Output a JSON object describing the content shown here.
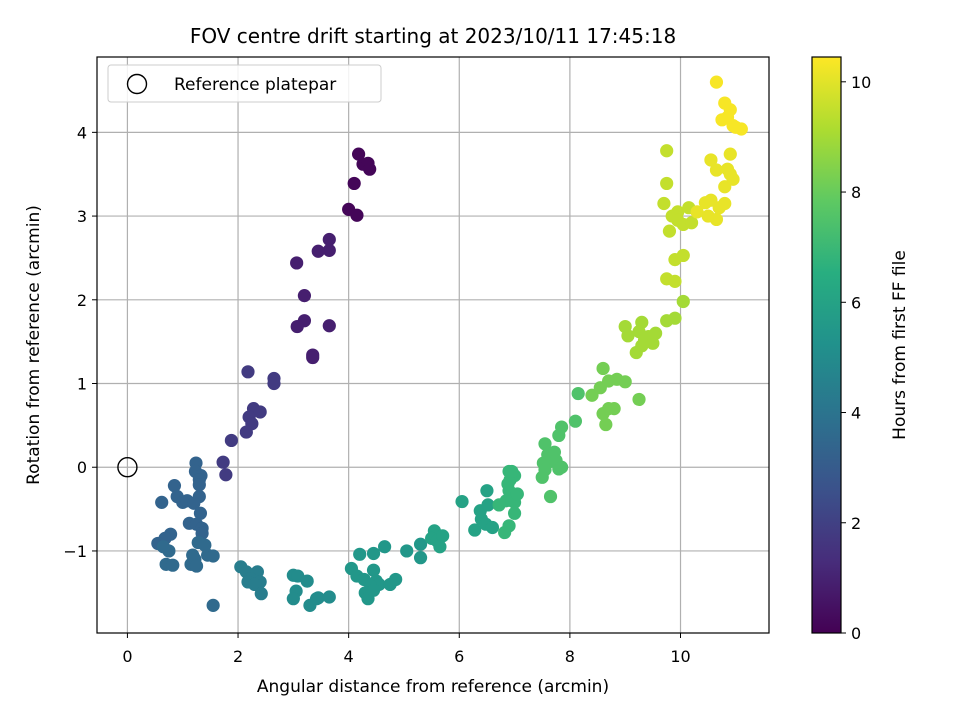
{
  "chart_data": {
    "type": "scatter",
    "title": "FOV centre drift starting at 2023/10/11 17:45:18",
    "xlabel": "Angular distance from reference (arcmin)",
    "ylabel": "Rotation from reference (arcmin)",
    "xlim": [
      -0.55,
      11.6
    ],
    "ylim": [
      -1.98,
      4.9
    ],
    "xticks": [
      0,
      2,
      4,
      6,
      8,
      10
    ],
    "yticks": [
      -1,
      0,
      1,
      2,
      3,
      4
    ],
    "xtick_labels": [
      "0",
      "2",
      "4",
      "6",
      "8",
      "10"
    ],
    "ytick_labels": [
      "−1",
      "0",
      "1",
      "2",
      "3",
      "4"
    ],
    "grid": true,
    "legend": {
      "placement": "top-left",
      "entries": [
        "Reference platepar"
      ]
    },
    "colormap": "viridis",
    "reference": {
      "name": "Reference platepar",
      "x": 0,
      "y": 0
    },
    "colorbar": {
      "label": "Hours from first FF file",
      "range": [
        0,
        10.45
      ],
      "ticks": [
        0,
        2,
        4,
        6,
        8,
        10
      ],
      "tick_labels": [
        "0",
        "2",
        "4",
        "6",
        "8",
        "10"
      ]
    },
    "series": [
      {
        "c": 0.15,
        "points": [
          [
            4.18,
            3.74
          ],
          [
            4.26,
            3.62
          ],
          [
            4.35,
            3.63
          ],
          [
            4.38,
            3.56
          ],
          [
            4.1,
            3.39
          ],
          [
            4.0,
            3.08
          ],
          [
            4.15,
            3.01
          ]
        ]
      },
      {
        "c": 0.9,
        "points": [
          [
            3.65,
            2.72
          ],
          [
            3.65,
            2.59
          ],
          [
            3.45,
            2.58
          ],
          [
            3.06,
            2.44
          ],
          [
            3.2,
            2.05
          ],
          [
            3.2,
            1.75
          ],
          [
            3.07,
            1.68
          ],
          [
            3.65,
            1.69
          ],
          [
            3.35,
            1.34
          ],
          [
            3.35,
            1.31
          ]
        ]
      },
      {
        "c": 1.8,
        "points": [
          [
            2.65,
            1.06
          ],
          [
            2.65,
            1.0
          ],
          [
            2.18,
            1.14
          ],
          [
            2.28,
            0.7
          ],
          [
            2.4,
            0.66
          ],
          [
            2.2,
            0.6
          ],
          [
            2.25,
            0.52
          ],
          [
            2.15,
            0.42
          ],
          [
            1.88,
            0.32
          ],
          [
            1.73,
            0.06
          ],
          [
            1.78,
            -0.09
          ]
        ]
      },
      {
        "c": 3.3,
        "points": [
          [
            1.24,
            0.05
          ],
          [
            1.23,
            -0.05
          ],
          [
            1.33,
            -0.1
          ],
          [
            1.3,
            -0.15
          ],
          [
            1.3,
            -0.21
          ],
          [
            0.85,
            -0.22
          ],
          [
            1.3,
            -0.35
          ],
          [
            0.9,
            -0.35
          ],
          [
            1.0,
            -0.42
          ],
          [
            1.08,
            -0.4
          ],
          [
            0.62,
            -0.42
          ],
          [
            1.2,
            -0.43
          ],
          [
            1.32,
            -0.55
          ],
          [
            1.12,
            -0.67
          ],
          [
            1.25,
            -0.68
          ],
          [
            1.35,
            -0.73
          ],
          [
            1.35,
            -0.79
          ],
          [
            0.78,
            -0.8
          ],
          [
            0.68,
            -0.85
          ],
          [
            0.55,
            -0.91
          ]
        ]
      },
      {
        "c": 3.6,
        "points": [
          [
            0.75,
            -1.0
          ],
          [
            0.65,
            -0.95
          ],
          [
            1.28,
            -0.9
          ],
          [
            1.4,
            -0.93
          ],
          [
            1.45,
            -1.05
          ],
          [
            1.55,
            -1.06
          ],
          [
            1.18,
            -1.05
          ],
          [
            1.22,
            -1.1
          ],
          [
            0.7,
            -1.16
          ],
          [
            0.82,
            -1.17
          ],
          [
            1.15,
            -1.16
          ],
          [
            1.25,
            -1.18
          ],
          [
            1.55,
            -1.65
          ]
        ]
      },
      {
        "c": 4.4,
        "points": [
          [
            2.05,
            -1.19
          ],
          [
            2.15,
            -1.25
          ],
          [
            2.35,
            -1.25
          ],
          [
            2.22,
            -1.33
          ],
          [
            2.18,
            -1.37
          ],
          [
            2.4,
            -1.37
          ],
          [
            2.3,
            -1.4
          ],
          [
            2.42,
            -1.51
          ]
        ]
      },
      {
        "c": 5.0,
        "points": [
          [
            3.0,
            -1.29
          ],
          [
            3.08,
            -1.3
          ],
          [
            3.25,
            -1.36
          ],
          [
            3.05,
            -1.48
          ],
          [
            3.0,
            -1.57
          ],
          [
            3.45,
            -1.56
          ],
          [
            3.65,
            -1.55
          ],
          [
            3.3,
            -1.65
          ],
          [
            3.42,
            -1.57
          ]
        ]
      },
      {
        "c": 5.5,
        "points": [
          [
            4.05,
            -1.21
          ],
          [
            4.2,
            -1.04
          ],
          [
            4.45,
            -1.03
          ],
          [
            4.65,
            -0.95
          ],
          [
            4.15,
            -1.3
          ],
          [
            4.28,
            -1.34
          ],
          [
            4.45,
            -1.23
          ],
          [
            4.5,
            -1.36
          ],
          [
            4.55,
            -1.4
          ],
          [
            4.4,
            -1.42
          ],
          [
            4.3,
            -1.5
          ],
          [
            4.35,
            -1.57
          ],
          [
            4.45,
            -1.47
          ],
          [
            4.75,
            -1.4
          ],
          [
            4.85,
            -1.34
          ],
          [
            5.05,
            -1.0
          ],
          [
            5.3,
            -0.92
          ],
          [
            5.3,
            -1.08
          ]
        ]
      },
      {
        "c": 6.0,
        "points": [
          [
            5.55,
            -0.76
          ],
          [
            5.5,
            -0.85
          ],
          [
            5.6,
            -0.88
          ],
          [
            5.7,
            -0.82
          ],
          [
            5.65,
            -0.95
          ],
          [
            6.05,
            -0.41
          ],
          [
            6.28,
            -0.75
          ],
          [
            6.4,
            -0.62
          ],
          [
            6.38,
            -0.52
          ],
          [
            6.52,
            -0.45
          ],
          [
            6.48,
            -0.68
          ],
          [
            6.6,
            -0.72
          ],
          [
            6.5,
            -0.28
          ]
        ]
      },
      {
        "c": 6.9,
        "points": [
          [
            6.72,
            -0.45
          ],
          [
            6.85,
            -0.4
          ],
          [
            6.82,
            -0.78
          ],
          [
            6.9,
            -0.7
          ],
          [
            6.9,
            -0.28
          ],
          [
            6.95,
            -0.4
          ],
          [
            7.0,
            -0.42
          ],
          [
            6.92,
            -0.15
          ],
          [
            6.88,
            -0.2
          ],
          [
            6.9,
            -0.05
          ],
          [
            7.0,
            -0.1
          ],
          [
            7.05,
            -0.32
          ],
          [
            7.0,
            -0.55
          ],
          [
            6.95,
            -0.05
          ]
        ]
      },
      {
        "c": 7.5,
        "points": [
          [
            7.55,
            0.28
          ],
          [
            7.6,
            0.15
          ],
          [
            7.65,
            0.07
          ],
          [
            7.52,
            0.05
          ],
          [
            7.55,
            -0.03
          ],
          [
            7.5,
            -0.12
          ],
          [
            7.8,
            0.38
          ],
          [
            7.85,
            0.48
          ],
          [
            7.72,
            0.18
          ],
          [
            7.8,
            -0.02
          ],
          [
            7.65,
            -0.35
          ],
          [
            7.75,
            0.08
          ],
          [
            7.85,
            0.0
          ],
          [
            8.1,
            0.55
          ],
          [
            8.15,
            0.88
          ]
        ]
      },
      {
        "c": 8.2,
        "points": [
          [
            8.4,
            0.86
          ],
          [
            8.55,
            0.95
          ],
          [
            8.6,
            1.18
          ],
          [
            8.7,
            1.03
          ],
          [
            8.6,
            0.64
          ],
          [
            8.7,
            0.7
          ],
          [
            8.8,
            0.7
          ],
          [
            8.65,
            0.51
          ],
          [
            8.85,
            1.05
          ],
          [
            9.0,
            1.02
          ],
          [
            9.25,
            0.81
          ]
        ]
      },
      {
        "c": 9.0,
        "points": [
          [
            9.0,
            1.68
          ],
          [
            9.05,
            1.57
          ],
          [
            9.25,
            1.62
          ],
          [
            9.3,
            1.73
          ],
          [
            9.35,
            1.52
          ],
          [
            9.2,
            1.37
          ],
          [
            9.3,
            1.45
          ],
          [
            9.42,
            1.56
          ],
          [
            9.5,
            1.48
          ],
          [
            9.55,
            1.6
          ],
          [
            9.75,
            1.75
          ],
          [
            9.9,
            1.78
          ],
          [
            10.05,
            1.98
          ]
        ]
      },
      {
        "c": 9.5,
        "points": [
          [
            9.75,
            3.78
          ],
          [
            9.75,
            3.39
          ],
          [
            9.7,
            3.15
          ],
          [
            9.85,
            3.0
          ],
          [
            9.95,
            3.05
          ],
          [
            9.8,
            2.82
          ],
          [
            9.95,
            2.95
          ],
          [
            9.9,
            2.48
          ],
          [
            10.05,
            2.53
          ],
          [
            9.75,
            2.25
          ],
          [
            9.9,
            2.22
          ],
          [
            10.05,
            2.9
          ],
          [
            10.15,
            3.1
          ],
          [
            10.2,
            2.92
          ]
        ]
      },
      {
        "c": 10.1,
        "points": [
          [
            10.3,
            3.05
          ],
          [
            10.45,
            3.16
          ],
          [
            10.55,
            3.19
          ],
          [
            10.5,
            3.0
          ],
          [
            10.65,
            2.96
          ],
          [
            10.7,
            3.1
          ],
          [
            10.8,
            3.15
          ],
          [
            10.55,
            3.67
          ],
          [
            10.65,
            3.55
          ],
          [
            10.8,
            3.35
          ],
          [
            10.9,
            3.5
          ],
          [
            10.85,
            3.56
          ],
          [
            10.9,
            3.74
          ],
          [
            10.95,
            3.44
          ]
        ]
      },
      {
        "c": 10.35,
        "points": [
          [
            10.65,
            4.6
          ],
          [
            10.75,
            4.15
          ],
          [
            10.8,
            4.35
          ],
          [
            10.9,
            4.27
          ],
          [
            10.85,
            4.18
          ],
          [
            11.0,
            4.06
          ],
          [
            11.1,
            4.04
          ],
          [
            10.95,
            4.08
          ]
        ]
      }
    ]
  }
}
